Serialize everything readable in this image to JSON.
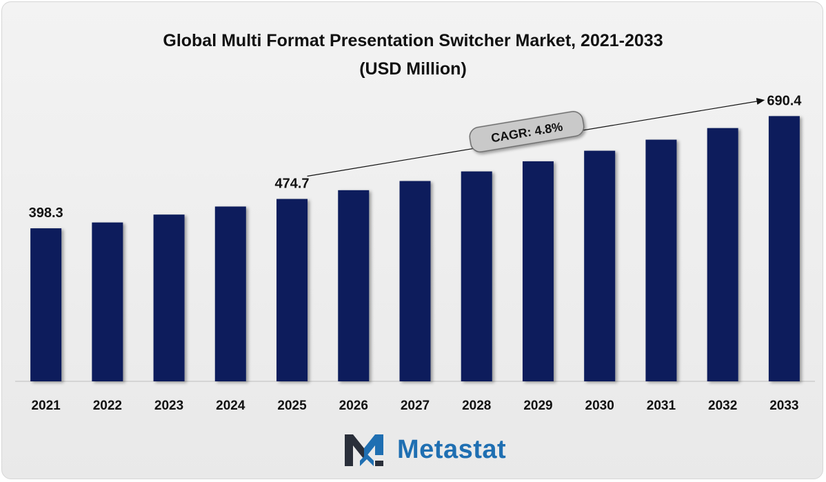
{
  "chart_data": {
    "type": "bar",
    "title": "Global Multi Format Presentation Switcher Market, 2021-2033",
    "subtitle": "(USD Million)",
    "categories": [
      "2021",
      "2022",
      "2023",
      "2024",
      "2025",
      "2026",
      "2027",
      "2028",
      "2029",
      "2030",
      "2031",
      "2032",
      "2033"
    ],
    "values": [
      398.3,
      413.5,
      434.0,
      455.0,
      474.7,
      497.5,
      521.4,
      546.4,
      572.7,
      600.2,
      629.0,
      659.2,
      690.4
    ],
    "data_labels": [
      {
        "index": 0,
        "text": "398.3"
      },
      {
        "index": 4,
        "text": "474.7"
      },
      {
        "index": 12,
        "text": "690.4"
      }
    ],
    "annotation": "CAGR: 4.8%",
    "ylim": [
      0,
      700
    ],
    "grid": false,
    "bar_color": "#0b1f5c"
  },
  "brand": {
    "name": "Metastat"
  }
}
